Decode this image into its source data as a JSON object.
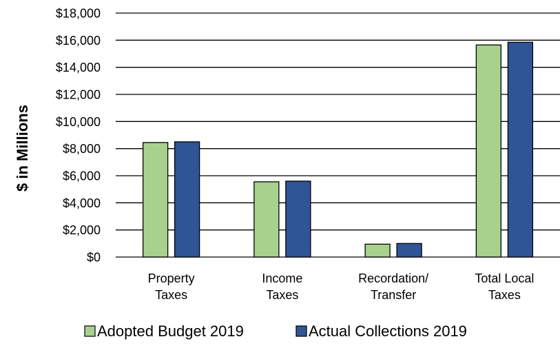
{
  "chart_data": {
    "type": "bar",
    "title": "",
    "xlabel": "",
    "ylabel": "$ in Millions",
    "ylim": [
      0,
      18000
    ],
    "yticks": [
      0,
      2000,
      4000,
      6000,
      8000,
      10000,
      12000,
      14000,
      16000,
      18000
    ],
    "ytick_labels": [
      "$0",
      "$2,000",
      "$4,000",
      "$6,000",
      "$8,000",
      "$10,000",
      "$12,000",
      "$14,000",
      "$16,000",
      "$18,000"
    ],
    "categories": [
      [
        "Property",
        "Taxes"
      ],
      [
        "Income",
        "Taxes"
      ],
      [
        "Recordation/",
        "Transfer"
      ],
      [
        "Total Local",
        "Taxes"
      ]
    ],
    "series": [
      {
        "name": "Adopted Budget 2019",
        "color": "#a9d18e",
        "values": [
          8450,
          5550,
          950,
          15650
        ]
      },
      {
        "name": "Actual Collections 2019",
        "color": "#2f5597",
        "values": [
          8500,
          5600,
          1000,
          15850
        ]
      }
    ],
    "grid": "horizontal",
    "legend": "bottom"
  }
}
